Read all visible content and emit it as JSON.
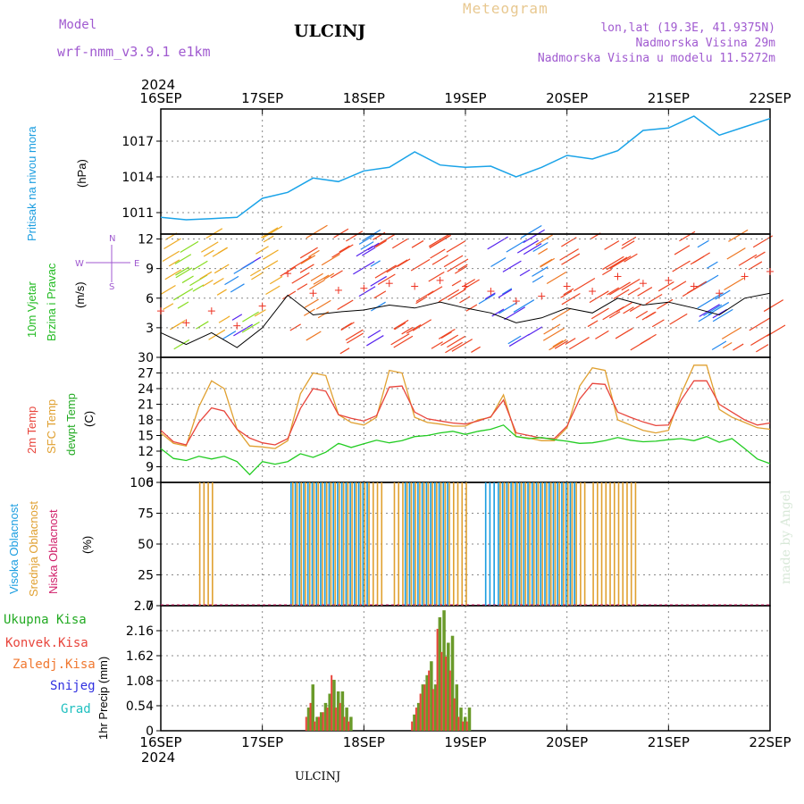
{
  "header": {
    "model_label": "Model",
    "model_name": "wrf-nmm_v3.9.1 e1km",
    "title": "ULCINJ",
    "meteogram_label": "Meteogram",
    "lonlat": "lon,lat (19.3E, 41.9375N)",
    "altitude": "Nadmorska Visina 29m",
    "model_altitude": "Nadmorska Visina u modelu 11.5272m"
  },
  "colors": {
    "pressure": "#1aa3e8",
    "wind_speed": "#000000",
    "temp2m": "#e8453c",
    "sfc_temp": "#e0a030",
    "dewpt": "#22cc22",
    "high_cloud": "#1a9de0",
    "mid_cloud": "#e0a030",
    "low_cloud": "#d0206a",
    "total_precip": "#6a9a2a",
    "conv_precip": "#e8453c",
    "grid": "#888888"
  },
  "axes": {
    "year": "2024",
    "x_ticks": [
      "16SEP",
      "17SEP",
      "18SEP",
      "19SEP",
      "20SEP",
      "21SEP",
      "22SEP"
    ]
  },
  "panels": {
    "pressure": {
      "labels": [
        "Pritisak na nivou mora"
      ],
      "unit": "(hPa)",
      "yticks": [
        1011,
        1014,
        1017
      ]
    },
    "wind": {
      "labels": [
        "10m Vjetar",
        "Brzina i Pravac"
      ],
      "unit": "(m/s)",
      "yticks": [
        3,
        6,
        9,
        12
      ],
      "compass": {
        "n": "N",
        "s": "S",
        "w": "W",
        "e": "E"
      }
    },
    "temperature": {
      "labels": [
        "2m Temp",
        "SFC Temp",
        "dewpt Temp"
      ],
      "unit": "(C)",
      "yticks": [
        6,
        9,
        12,
        15,
        18,
        21,
        24,
        27,
        30
      ]
    },
    "cloud": {
      "labels": [
        "Visoka Oblacnost",
        "Srednja Oblacnost",
        "Niska Oblacnost"
      ],
      "unit": "(%)",
      "yticks": [
        0,
        25,
        50,
        75,
        100
      ]
    },
    "precip": {
      "legend": [
        "Ukupna Kisa",
        "Konvek.Kisa",
        "Zaledj.Kisa",
        "Snijeg",
        "Grad"
      ],
      "legend_colors": [
        "#22aa22",
        "#e8453c",
        "#f07830",
        "#3030e0",
        "#20c0c0"
      ],
      "ylabel": "1hr Precip (mm)",
      "yticks": [
        "0",
        "0.54",
        "1.08",
        "1.62",
        "2.16",
        "2.7"
      ]
    }
  },
  "footer": {
    "station": "ULCINJ",
    "credit": "made by Angel"
  },
  "chart_data": [
    {
      "type": "line",
      "title": "",
      "ylabel": "(hPa)",
      "x": [
        0,
        6,
        12,
        18,
        24,
        30,
        36,
        42,
        48,
        54,
        60,
        66,
        72,
        78,
        84,
        90,
        96,
        102,
        108,
        114,
        120,
        126,
        132,
        138,
        144
      ],
      "series": [
        {
          "name": "Pritisak na nivou mora",
          "values": [
            1010.6,
            1010.4,
            1010.5,
            1010.6,
            1012.2,
            1012.7,
            1013.9,
            1013.6,
            1014.5,
            1014.8,
            1016.1,
            1015.0,
            1014.8,
            1014.9,
            1014.0,
            1014.8,
            1015.8,
            1015.5,
            1016.2,
            1017.9,
            1018.1,
            1019.1,
            1017.5,
            1018.2,
            1018.9
          ]
        }
      ],
      "ylim": [
        1009.2,
        1019.7
      ]
    },
    {
      "type": "line",
      "title": "",
      "ylabel": "(m/s)",
      "x": [
        0,
        6,
        12,
        18,
        24,
        30,
        36,
        42,
        48,
        54,
        60,
        66,
        72,
        78,
        84,
        90,
        96,
        102,
        108,
        114,
        120,
        126,
        132,
        138,
        144
      ],
      "series": [
        {
          "name": "10m Vjetar",
          "values": [
            2.5,
            1.3,
            2.5,
            1.0,
            3.0,
            6.3,
            4.3,
            4.6,
            4.8,
            5.3,
            5.0,
            5.6,
            5.0,
            4.5,
            3.5,
            4.0,
            5.0,
            4.5,
            6.0,
            5.3,
            5.6,
            5.0,
            4.3,
            6.0,
            6.5
          ]
        }
      ],
      "ylim": [
        0,
        12.5
      ]
    },
    {
      "type": "line",
      "title": "",
      "ylabel": "(C)",
      "x": [
        0,
        3,
        6,
        9,
        12,
        15,
        18,
        21,
        24,
        27,
        30,
        33,
        36,
        39,
        42,
        45,
        48,
        51,
        54,
        57,
        60,
        63,
        66,
        69,
        72,
        75,
        78,
        81,
        84,
        87,
        90,
        93,
        96,
        99,
        102,
        105,
        108,
        111,
        114,
        117,
        120,
        123,
        126,
        129,
        132,
        135,
        138,
        141,
        144
      ],
      "series": [
        {
          "name": "2m Temp",
          "values": [
            16,
            13.8,
            13.2,
            17.5,
            20.3,
            19.7,
            16.2,
            14.5,
            13.6,
            13.2,
            14.4,
            20.2,
            24.0,
            23.5,
            19.0,
            18.3,
            17.8,
            18.8,
            24.3,
            24.5,
            19.5,
            18.2,
            17.8,
            17.4,
            17.2,
            17.8,
            18.6,
            21.8,
            15.5,
            15.0,
            14.5,
            14.4,
            16.8,
            22.0,
            25.0,
            24.8,
            19.5,
            18.5,
            17.6,
            16.9,
            17.0,
            21.8,
            25.5,
            25.5,
            21.0,
            19.5,
            18.0,
            17.0,
            17.4
          ]
        },
        {
          "name": "SFC Temp",
          "values": [
            15.5,
            13.5,
            13.0,
            20.5,
            25.5,
            24.0,
            16.2,
            13.0,
            12.8,
            12.5,
            14.0,
            23.0,
            27.0,
            26.5,
            19.0,
            17.5,
            17.0,
            18.5,
            27.5,
            27.0,
            18.5,
            17.5,
            17.2,
            16.8,
            16.8,
            18.0,
            18.5,
            22.8,
            14.8,
            14.5,
            14.0,
            14.0,
            16.5,
            24.5,
            28.0,
            27.5,
            18.0,
            17.0,
            16.0,
            15.5,
            16.0,
            23.0,
            28.5,
            28.5,
            20.0,
            18.5,
            17.5,
            16.5,
            16.2
          ]
        },
        {
          "name": "dewpt Temp",
          "values": [
            12.5,
            10.6,
            10.2,
            11.0,
            10.5,
            11.0,
            10.0,
            7.5,
            10.0,
            9.5,
            10.0,
            11.5,
            10.8,
            11.8,
            13.5,
            12.7,
            13.4,
            14.1,
            13.6,
            14.0,
            14.8,
            15.0,
            15.5,
            15.8,
            15.2,
            15.8,
            16.2,
            17.0,
            14.8,
            14.4,
            14.6,
            14.2,
            13.9,
            13.5,
            13.6,
            14.0,
            14.6,
            14.1,
            13.8,
            13.9,
            14.2,
            14.4,
            14.0,
            14.8,
            13.7,
            14.4,
            12.5,
            10.5,
            9.6
          ]
        }
      ],
      "ylim": [
        6,
        30
      ]
    },
    {
      "type": "bar",
      "title": "",
      "ylabel": "(%)",
      "ranges": [
        {
          "series": "Srednja Oblacnost",
          "start": 9,
          "end": 12,
          "value": 100
        },
        {
          "series": "Visoka Oblacnost",
          "start": 31,
          "end": 49,
          "value": 100
        },
        {
          "series": "Srednja Oblacnost",
          "start": 31,
          "end": 52,
          "value": 100
        },
        {
          "series": "Visoka Oblacnost",
          "start": 58,
          "end": 68,
          "value": 100
        },
        {
          "series": "Srednja Oblacnost",
          "start": 55,
          "end": 72,
          "value": 100
        },
        {
          "series": "Visoka Oblacnost",
          "start": 77,
          "end": 98,
          "value": 100
        },
        {
          "series": "Srednja Oblacnost",
          "start": 80,
          "end": 100,
          "value": 100
        },
        {
          "series": "Srednja Oblacnost",
          "start": 102,
          "end": 112,
          "value": 100
        }
      ],
      "ylim": [
        0,
        100
      ]
    },
    {
      "type": "bar",
      "title": "",
      "ylabel": "1hr Precip (mm)",
      "x": [
        35,
        36,
        37,
        38,
        39,
        40,
        41,
        42,
        43,
        44,
        45,
        60,
        61,
        62,
        63,
        64,
        65,
        66,
        67,
        68,
        69,
        70,
        71,
        72,
        73
      ],
      "series": [
        {
          "name": "Ukupna Kisa",
          "values": [
            0.5,
            1.0,
            0.3,
            0.4,
            0.6,
            0.8,
            1.1,
            0.85,
            0.85,
            0.5,
            0.3,
            0.35,
            0.6,
            1.0,
            1.2,
            1.5,
            1.0,
            2.45,
            2.6,
            1.9,
            2.05,
            1.0,
            0.5,
            0.3,
            0.5
          ]
        },
        {
          "name": "Konvek.Kisa",
          "values": [
            0.3,
            0.6,
            0.2,
            0.3,
            0.4,
            0.5,
            1.2,
            0.5,
            0.6,
            0.3,
            0.2,
            0.2,
            0.5,
            0.8,
            1.0,
            1.3,
            0.9,
            2.2,
            1.7,
            1.6,
            1.3,
            0.7,
            0.3,
            0.2,
            0.2
          ]
        }
      ],
      "ylim": [
        0,
        2.7
      ]
    }
  ]
}
